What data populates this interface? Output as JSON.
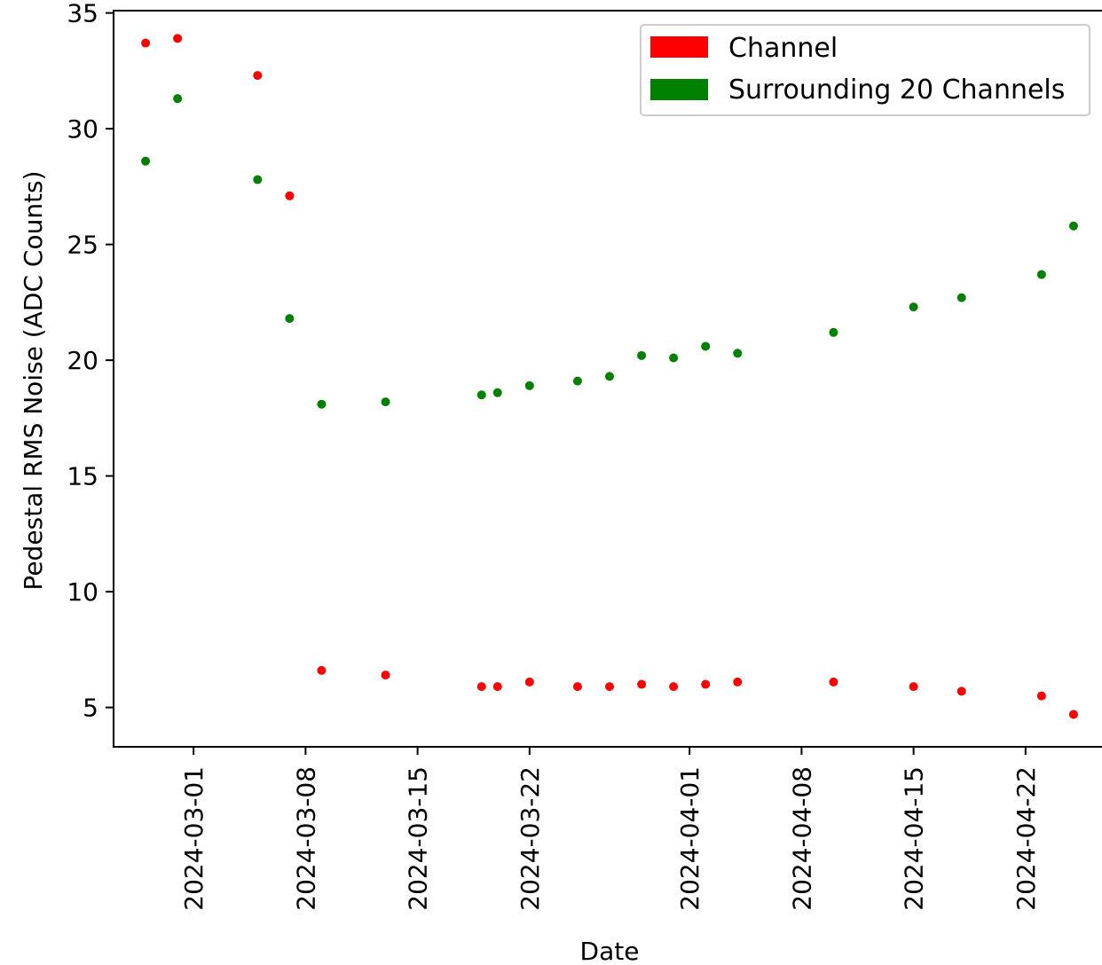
{
  "chart_data": {
    "type": "scatter",
    "xlabel": "Date",
    "ylabel": "Pedestal RMS Noise (ADC Counts)",
    "ylim": [
      3.3,
      35.1
    ],
    "xlim": [
      "2024-02-25",
      "2024-04-27"
    ],
    "yticks": [
      5,
      10,
      15,
      20,
      25,
      30,
      35
    ],
    "xticks": [
      "2024-03-01",
      "2024-03-08",
      "2024-03-15",
      "2024-03-22",
      "2024-04-01",
      "2024-04-08",
      "2024-04-15",
      "2024-04-22"
    ],
    "legend_position": "top-right",
    "grid": false,
    "series": [
      {
        "name": "Channel",
        "color": "#ff0000",
        "points": [
          {
            "x": "2024-02-27",
            "y": 33.7
          },
          {
            "x": "2024-02-29",
            "y": 33.9
          },
          {
            "x": "2024-03-05",
            "y": 32.3
          },
          {
            "x": "2024-03-07",
            "y": 27.1
          },
          {
            "x": "2024-03-09",
            "y": 6.6
          },
          {
            "x": "2024-03-13",
            "y": 6.4
          },
          {
            "x": "2024-03-19",
            "y": 5.9
          },
          {
            "x": "2024-03-20",
            "y": 5.9
          },
          {
            "x": "2024-03-22",
            "y": 6.1
          },
          {
            "x": "2024-03-25",
            "y": 5.9
          },
          {
            "x": "2024-03-27",
            "y": 5.9
          },
          {
            "x": "2024-03-29",
            "y": 6.0
          },
          {
            "x": "2024-03-31",
            "y": 5.9
          },
          {
            "x": "2024-04-02",
            "y": 6.0
          },
          {
            "x": "2024-04-04",
            "y": 6.1
          },
          {
            "x": "2024-04-10",
            "y": 6.1
          },
          {
            "x": "2024-04-15",
            "y": 5.9
          },
          {
            "x": "2024-04-18",
            "y": 5.7
          },
          {
            "x": "2024-04-23",
            "y": 5.5
          },
          {
            "x": "2024-04-25",
            "y": 4.7
          }
        ]
      },
      {
        "name": "Surrounding 20 Channels",
        "color": "#008000",
        "points": [
          {
            "x": "2024-02-27",
            "y": 28.6
          },
          {
            "x": "2024-02-29",
            "y": 31.3
          },
          {
            "x": "2024-03-05",
            "y": 27.8
          },
          {
            "x": "2024-03-07",
            "y": 21.8
          },
          {
            "x": "2024-03-09",
            "y": 18.1
          },
          {
            "x": "2024-03-13",
            "y": 18.2
          },
          {
            "x": "2024-03-19",
            "y": 18.5
          },
          {
            "x": "2024-03-20",
            "y": 18.6
          },
          {
            "x": "2024-03-22",
            "y": 18.9
          },
          {
            "x": "2024-03-25",
            "y": 19.1
          },
          {
            "x": "2024-03-27",
            "y": 19.3
          },
          {
            "x": "2024-03-29",
            "y": 20.2
          },
          {
            "x": "2024-03-31",
            "y": 20.1
          },
          {
            "x": "2024-04-02",
            "y": 20.6
          },
          {
            "x": "2024-04-04",
            "y": 20.3
          },
          {
            "x": "2024-04-10",
            "y": 21.2
          },
          {
            "x": "2024-04-15",
            "y": 22.3
          },
          {
            "x": "2024-04-18",
            "y": 22.7
          },
          {
            "x": "2024-04-23",
            "y": 23.7
          },
          {
            "x": "2024-04-25",
            "y": 25.8
          }
        ]
      }
    ]
  }
}
